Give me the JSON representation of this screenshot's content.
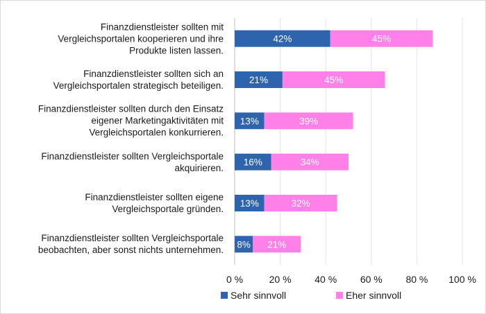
{
  "chart_data": {
    "type": "bar",
    "orientation": "horizontal",
    "stacked": true,
    "categories": [
      "Finanzdienstleister sollten mit\nVergleichsportalen kooperieren und ihre\nProdukte listen lassen.",
      "Finanzdienstleister sollten sich an\nVergleichsportalen strategisch beteiligen.",
      "Finanzdienstleister sollten durch den Einsatz\neigener Marketingaktivitäten mit\nVergleichsportalen konkurrieren.",
      "Finanzdienstleister sollten Vergleichsportale\nakquirieren.",
      "Finanzdienstleister sollten eigene\nVergleichsportale gründen.",
      "Finanzdienstleister sollten Vergleichsportale\nbeobachten, aber sonst nichts unternehmen."
    ],
    "series": [
      {
        "name": "Sehr sinnvoll",
        "color": "#2e64ae",
        "values": [
          42,
          21,
          13,
          16,
          13,
          8
        ],
        "labels": [
          "42%",
          "21%",
          "13%",
          "16%",
          "13%",
          "8%"
        ]
      },
      {
        "name": "Eher sinnvoll",
        "color": "#ff80e8",
        "values": [
          45,
          45,
          39,
          34,
          32,
          21
        ],
        "labels": [
          "45%",
          "45%",
          "39%",
          "34%",
          "32%",
          "21%"
        ]
      }
    ],
    "xlim": [
      0,
      100
    ],
    "xticks": [
      0,
      20,
      40,
      60,
      80,
      100
    ],
    "xtick_labels": [
      "0 %",
      "20 %",
      "40 %",
      "60 %",
      "80 %",
      "100 %"
    ],
    "grid": "vertical",
    "legend": "bottom"
  }
}
